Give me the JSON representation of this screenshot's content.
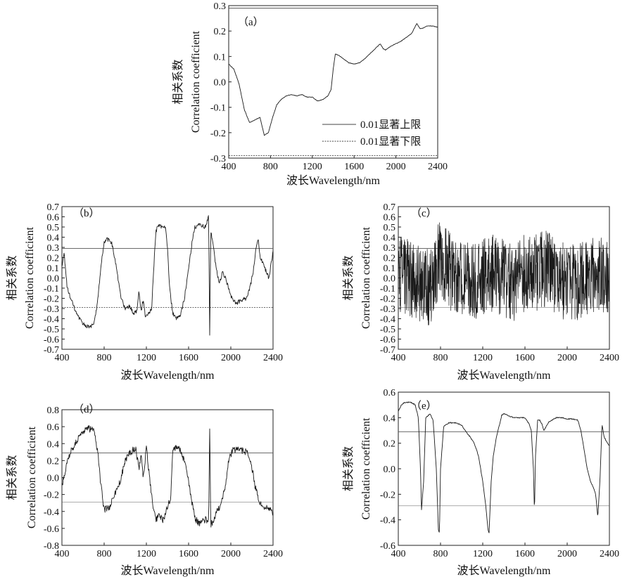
{
  "chart_data": [
    {
      "id": "a",
      "type": "line",
      "panel_label": "（a）",
      "xlabel": "波长Wavelength/nm",
      "ylabel_cn": "相关系数",
      "ylabel_en": "Correlation coefficient",
      "xlim": [
        400,
        2400
      ],
      "ylim": [
        -0.3,
        0.3
      ],
      "xticks": [
        "400",
        "800",
        "1200",
        "1600",
        "2000",
        "2400"
      ],
      "yticks": [
        "-0.3",
        "-0.2",
        "-0.1",
        "0.0",
        "0.1",
        "0.2",
        "0.3"
      ],
      "threshold_upper": 0.29,
      "threshold_lower": -0.29,
      "legend": [
        "0.01显著上限",
        "0.01显著下限"
      ],
      "legend_position": "bottom-right",
      "noise": 0.001,
      "x": [
        400,
        450,
        500,
        550,
        600,
        650,
        700,
        740,
        780,
        820,
        860,
        900,
        950,
        1000,
        1050,
        1100,
        1150,
        1200,
        1250,
        1300,
        1350,
        1380,
        1400,
        1420,
        1450,
        1500,
        1550,
        1600,
        1650,
        1700,
        1750,
        1800,
        1850,
        1880,
        1900,
        1950,
        2000,
        2050,
        2100,
        2150,
        2200,
        2230,
        2250,
        2300,
        2350,
        2400
      ],
      "y": [
        0.07,
        0.05,
        -0.01,
        -0.11,
        -0.16,
        -0.15,
        -0.14,
        -0.21,
        -0.2,
        -0.14,
        -0.09,
        -0.07,
        -0.055,
        -0.05,
        -0.055,
        -0.05,
        -0.06,
        -0.06,
        -0.075,
        -0.07,
        -0.055,
        -0.03,
        0.05,
        0.11,
        0.105,
        0.09,
        0.075,
        0.07,
        0.075,
        0.09,
        0.11,
        0.13,
        0.15,
        0.13,
        0.125,
        0.14,
        0.15,
        0.16,
        0.175,
        0.19,
        0.23,
        0.21,
        0.21,
        0.22,
        0.22,
        0.215
      ]
    },
    {
      "id": "b",
      "type": "line",
      "panel_label": "（b）",
      "xlabel": "波长Wavelength/nm",
      "ylabel_cn": "相关系数",
      "ylabel_en": "Correlation coefficient",
      "xlim": [
        400,
        2400
      ],
      "ylim": [
        -0.7,
        0.7
      ],
      "xticks": [
        "400",
        "800",
        "1200",
        "1600",
        "2000",
        "2400"
      ],
      "yticks": [
        "-0.7",
        "-0.6",
        "-0.5",
        "-0.4",
        "-0.3",
        "-0.2",
        "-0.1",
        "0.0",
        "0.1",
        "0.2",
        "0.3",
        "0.4",
        "0.5",
        "0.6",
        "0.7"
      ],
      "threshold_upper": 0.29,
      "threshold_lower": -0.29,
      "noise": 0.02,
      "x": [
        400,
        420,
        450,
        500,
        550,
        600,
        650,
        700,
        730,
        760,
        780,
        800,
        830,
        870,
        900,
        930,
        960,
        1000,
        1040,
        1080,
        1110,
        1130,
        1150,
        1170,
        1190,
        1220,
        1250,
        1270,
        1290,
        1310,
        1350,
        1380,
        1400,
        1420,
        1450,
        1480,
        1520,
        1560,
        1600,
        1640,
        1660,
        1700,
        1760,
        1790,
        1800,
        1810,
        1830,
        1860,
        1890,
        1920,
        1950,
        1980,
        2010,
        2050,
        2100,
        2150,
        2180,
        2210,
        2240,
        2260,
        2280,
        2320,
        2360,
        2400
      ],
      "y": [
        0.1,
        0.25,
        -0.1,
        -0.25,
        -0.38,
        -0.45,
        -0.48,
        -0.46,
        -0.3,
        0.0,
        0.2,
        0.35,
        0.38,
        0.35,
        0.2,
        0.0,
        -0.2,
        -0.3,
        -0.28,
        -0.35,
        -0.32,
        -0.12,
        -0.33,
        -0.22,
        -0.38,
        -0.35,
        -0.3,
        0.1,
        0.45,
        0.52,
        0.5,
        0.51,
        0.3,
        -0.1,
        -0.35,
        -0.4,
        -0.38,
        -0.2,
        0.1,
        0.4,
        0.5,
        0.52,
        0.5,
        0.6,
        -0.55,
        0.45,
        0.35,
        0.1,
        -0.05,
        0.05,
        0.0,
        -0.1,
        -0.2,
        -0.25,
        -0.22,
        -0.2,
        -0.1,
        0.05,
        0.3,
        0.38,
        0.2,
        0.1,
        0.0,
        0.25
      ]
    },
    {
      "id": "c",
      "type": "line",
      "panel_label": "（c）",
      "xlabel": "波长Wavelength/nm",
      "ylabel_cn": "相关系数",
      "ylabel_en": "Correlation coefficient",
      "xlim": [
        400,
        2400
      ],
      "ylim": [
        -0.7,
        0.7
      ],
      "xticks": [
        "400",
        "800",
        "1200",
        "1600",
        "2000",
        "2400"
      ],
      "yticks": [
        "-0.7",
        "-0.6",
        "-0.5",
        "-0.4",
        "-0.3",
        "-0.2",
        "-0.1",
        "0.0",
        "0.1",
        "0.2",
        "0.3",
        "0.4",
        "0.5",
        "0.6",
        "0.7"
      ],
      "threshold_upper": 0.29,
      "threshold_lower": -0.29,
      "noise": 0.38,
      "x": [
        400,
        500,
        600,
        700,
        750,
        800,
        900,
        1000,
        1100,
        1200,
        1300,
        1400,
        1500,
        1600,
        1700,
        1800,
        1900,
        2000,
        2100,
        2200,
        2300,
        2400
      ],
      "y": [
        0.05,
        0.0,
        -0.05,
        -0.1,
        0.1,
        0.2,
        0.05,
        0.0,
        -0.05,
        0.0,
        0.05,
        0.0,
        -0.05,
        0.05,
        0.05,
        0.1,
        0.0,
        -0.05,
        -0.05,
        0.0,
        0.05,
        -0.05
      ]
    },
    {
      "id": "d",
      "type": "line",
      "panel_label": "（d）",
      "xlabel": "波长Wavelength/nm",
      "ylabel_cn": "相关系数",
      "ylabel_en": "Correlation coefficient",
      "xlim": [
        400,
        2400
      ],
      "ylim": [
        -0.8,
        0.8
      ],
      "xticks": [
        "400",
        "800",
        "1200",
        "1600",
        "2000",
        "2400"
      ],
      "yticks": [
        "-0.8",
        "-0.6",
        "-0.4",
        "-0.2",
        "0.0",
        "0.2",
        "0.4",
        "0.6",
        "0.8"
      ],
      "threshold_upper": 0.29,
      "threshold_lower": -0.29,
      "noise": 0.04,
      "x": [
        400,
        450,
        500,
        550,
        600,
        650,
        700,
        740,
        770,
        800,
        850,
        900,
        950,
        1000,
        1050,
        1100,
        1130,
        1150,
        1170,
        1200,
        1230,
        1260,
        1290,
        1320,
        1360,
        1400,
        1430,
        1450,
        1480,
        1520,
        1560,
        1600,
        1640,
        1660,
        1700,
        1760,
        1790,
        1800,
        1810,
        1840,
        1870,
        1900,
        1940,
        1980,
        2020,
        2080,
        2150,
        2190,
        2230,
        2270,
        2320,
        2360,
        2400
      ],
      "y": [
        -0.1,
        0.2,
        0.35,
        0.45,
        0.55,
        0.58,
        0.56,
        0.3,
        -0.1,
        -0.38,
        -0.35,
        -0.2,
        -0.05,
        0.2,
        0.3,
        0.35,
        0.1,
        0.3,
        0.0,
        0.35,
        0.0,
        -0.3,
        -0.5,
        -0.45,
        -0.5,
        -0.35,
        -0.25,
        0.3,
        0.35,
        0.33,
        0.2,
        -0.05,
        -0.35,
        -0.48,
        -0.55,
        -0.5,
        -0.52,
        0.6,
        -0.55,
        -0.5,
        -0.4,
        -0.35,
        -0.15,
        0.2,
        0.33,
        0.33,
        0.3,
        0.2,
        -0.1,
        -0.3,
        -0.38,
        -0.35,
        -0.42
      ]
    },
    {
      "id": "e",
      "type": "line",
      "panel_label": "（e）",
      "xlabel": "波长Wavelength/nm",
      "ylabel_cn": "相关系数",
      "ylabel_en": "Correlation coefficient",
      "xlim": [
        400,
        2400
      ],
      "ylim": [
        -0.6,
        0.6
      ],
      "xticks": [
        "400",
        "800",
        "1200",
        "1600",
        "2000",
        "2400"
      ],
      "yticks": [
        "-0.6",
        "-0.4",
        "-0.2",
        "0.0",
        "0.2",
        "0.4",
        "0.6"
      ],
      "threshold_upper": 0.29,
      "threshold_lower": -0.29,
      "noise": 0.004,
      "x": [
        400,
        430,
        460,
        520,
        560,
        590,
        610,
        620,
        640,
        660,
        700,
        730,
        760,
        780,
        790,
        800,
        830,
        880,
        950,
        1000,
        1050,
        1080,
        1120,
        1160,
        1180,
        1200,
        1230,
        1250,
        1260,
        1280,
        1300,
        1330,
        1360,
        1380,
        1400,
        1430,
        1460,
        1500,
        1550,
        1600,
        1640,
        1660,
        1680,
        1690,
        1700,
        1720,
        1740,
        1760,
        1780,
        1800,
        1820,
        1850,
        1900,
        1950,
        2000,
        2050,
        2100,
        2130,
        2160,
        2190,
        2220,
        2250,
        2270,
        2290,
        2310,
        2330,
        2350,
        2380,
        2400
      ],
      "y": [
        0.45,
        0.5,
        0.52,
        0.52,
        0.5,
        0.4,
        0.0,
        -0.32,
        -0.1,
        0.4,
        0.43,
        0.38,
        0.0,
        -0.48,
        -0.5,
        0.0,
        0.33,
        0.36,
        0.36,
        0.34,
        0.28,
        0.25,
        0.2,
        0.1,
        0.0,
        -0.1,
        -0.3,
        -0.48,
        -0.5,
        -0.1,
        0.1,
        0.25,
        0.35,
        0.42,
        0.43,
        0.42,
        0.41,
        0.4,
        0.4,
        0.4,
        0.35,
        0.3,
        0.0,
        -0.35,
        0.1,
        0.38,
        0.38,
        0.35,
        0.3,
        0.33,
        0.36,
        0.38,
        0.4,
        0.4,
        0.39,
        0.39,
        0.38,
        0.3,
        0.15,
        0.0,
        -0.1,
        -0.15,
        -0.2,
        -0.38,
        -0.1,
        0.35,
        0.25,
        0.2,
        0.18
      ]
    }
  ]
}
